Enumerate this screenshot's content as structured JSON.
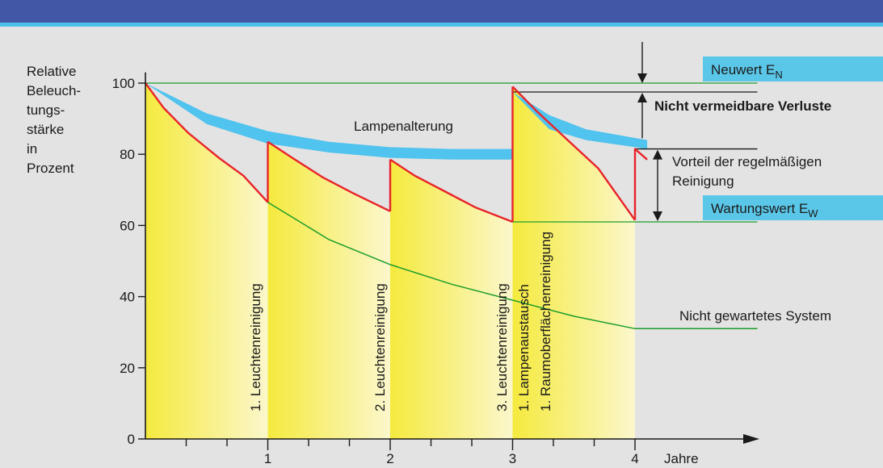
{
  "chart_data": {
    "type": "line",
    "ylabel_lines": [
      "Relative",
      "Beleuch-",
      "tungs-",
      "stärke",
      "in",
      "Prozent"
    ],
    "xlabel": "Jahre",
    "x_ticks": [
      {
        "value": 1,
        "label": "1"
      },
      {
        "value": 2,
        "label": "2"
      },
      {
        "value": 3,
        "label": "3"
      },
      {
        "value": 4,
        "label": "4"
      }
    ],
    "y_ticks": [
      0,
      20,
      40,
      60,
      80,
      100
    ],
    "xlim": [
      0,
      5
    ],
    "ylim": [
      0,
      100
    ],
    "series": [
      {
        "key": "maintained",
        "color": "#e8242a",
        "segments": [
          [
            [
              0,
              100
            ],
            [
              0.15,
              93
            ],
            [
              0.35,
              86
            ],
            [
              0.6,
              79
            ],
            [
              0.8,
              74
            ],
            [
              1.0,
              66.5
            ]
          ],
          [
            [
              1.0,
              66.5
            ],
            [
              1.0,
              83.5
            ]
          ],
          [
            [
              1.0,
              83.5
            ],
            [
              1.2,
              79
            ],
            [
              1.45,
              73.5
            ],
            [
              1.7,
              69
            ],
            [
              2.0,
              64
            ]
          ],
          [
            [
              2.0,
              64
            ],
            [
              2.0,
              78.5
            ]
          ],
          [
            [
              2.0,
              78.5
            ],
            [
              2.2,
              74
            ],
            [
              2.45,
              69.5
            ],
            [
              2.7,
              65
            ],
            [
              3.0,
              61
            ]
          ],
          [
            [
              3.0,
              61
            ],
            [
              3.0,
              99
            ]
          ],
          [
            [
              3.0,
              99
            ],
            [
              3.2,
              92
            ],
            [
              3.45,
              84
            ],
            [
              3.7,
              76
            ],
            [
              4.0,
              61.5
            ]
          ],
          [
            [
              4.0,
              61.5
            ],
            [
              4.0,
              81.5
            ],
            [
              4.1,
              78.5
            ]
          ]
        ]
      },
      {
        "key": "unmaintained",
        "color": "#1c9e2c",
        "points": [
          [
            1.0,
            66.5
          ],
          [
            1.5,
            56
          ],
          [
            2.0,
            49
          ],
          [
            2.5,
            43.5
          ],
          [
            3.0,
            39
          ],
          [
            3.5,
            34.5
          ],
          [
            4.0,
            31
          ],
          [
            5.0,
            31
          ]
        ]
      }
    ],
    "lamp_aging_bands": [
      {
        "upper": [
          [
            0,
            100
          ],
          [
            0.5,
            91.5
          ],
          [
            1.0,
            86.5
          ],
          [
            1.5,
            83.5
          ],
          [
            2.0,
            82
          ],
          [
            2.5,
            81.5
          ],
          [
            3.0,
            81.5
          ]
        ],
        "lower": [
          [
            3.0,
            78.5
          ],
          [
            2.5,
            78.5
          ],
          [
            2.0,
            79
          ],
          [
            1.5,
            80.5
          ],
          [
            1.0,
            83
          ],
          [
            0.5,
            88.5
          ],
          [
            0,
            100
          ]
        ]
      },
      {
        "upper": [
          [
            3.0,
            97.5
          ],
          [
            3.3,
            91
          ],
          [
            3.6,
            87
          ],
          [
            4.1,
            84
          ]
        ],
        "lower": [
          [
            4.1,
            81.5
          ],
          [
            3.6,
            84
          ],
          [
            3.3,
            87
          ],
          [
            3.0,
            97.5
          ]
        ]
      }
    ],
    "reference_lines": [
      {
        "key": "neuwert",
        "y": 100,
        "x_from": 0,
        "x_to": 5,
        "color": "#1c9e2c"
      },
      {
        "key": "wartungswert",
        "y": 61,
        "x_from": 3,
        "x_to": 5,
        "color": "#1c9e2c"
      },
      {
        "key": "loss-upper",
        "y": 97.5,
        "x_from": 3,
        "x_to": 5,
        "color": "#1a1a1a"
      },
      {
        "key": "loss-lower",
        "y": 81.5,
        "x_from": 4,
        "x_to": 5,
        "color": "#1a1a1a"
      }
    ],
    "annotations": {
      "lamp_aging": "Lampenalterung",
      "unavoidable_losses": "Nicht vermeidbare Verluste",
      "cleaning_advantage_lines": [
        "Vorteil der regelmäßigen",
        "Reinigung"
      ],
      "unmaintained_system": "Nicht gewartetes System"
    },
    "label_boxes": [
      {
        "key": "neuwert",
        "text": "Neuwert E",
        "sub": "N",
        "color": "#5bc7e8"
      },
      {
        "key": "wartungswert",
        "text": "Wartungswert E",
        "sub": "W",
        "color": "#5bc7e8"
      }
    ],
    "event_labels": [
      {
        "key": "cleaning-1",
        "x": 1,
        "text": "1. Leuchtenreinigung"
      },
      {
        "key": "cleaning-2",
        "x": 2,
        "text": "2. Leuchtenreinigung"
      },
      {
        "key": "cleaning-3",
        "x": 3,
        "text": "3. Leuchtenreinigung"
      },
      {
        "key": "lamp-replacement",
        "x": 3,
        "text": "1. Lampenaustausch"
      },
      {
        "key": "room-cleaning",
        "x": 3,
        "text": "1. Raumoberflächenreinigung"
      }
    ],
    "colors": {
      "header_bar": "#4257a6",
      "header_stripe": "#4bc0e8",
      "background": "#e3e3e3",
      "fill_strong": "#f5ea3e",
      "fill_light": "#fbf7cc",
      "lamp_band": "#50c3ee",
      "axis": "#1a1a1a"
    }
  }
}
